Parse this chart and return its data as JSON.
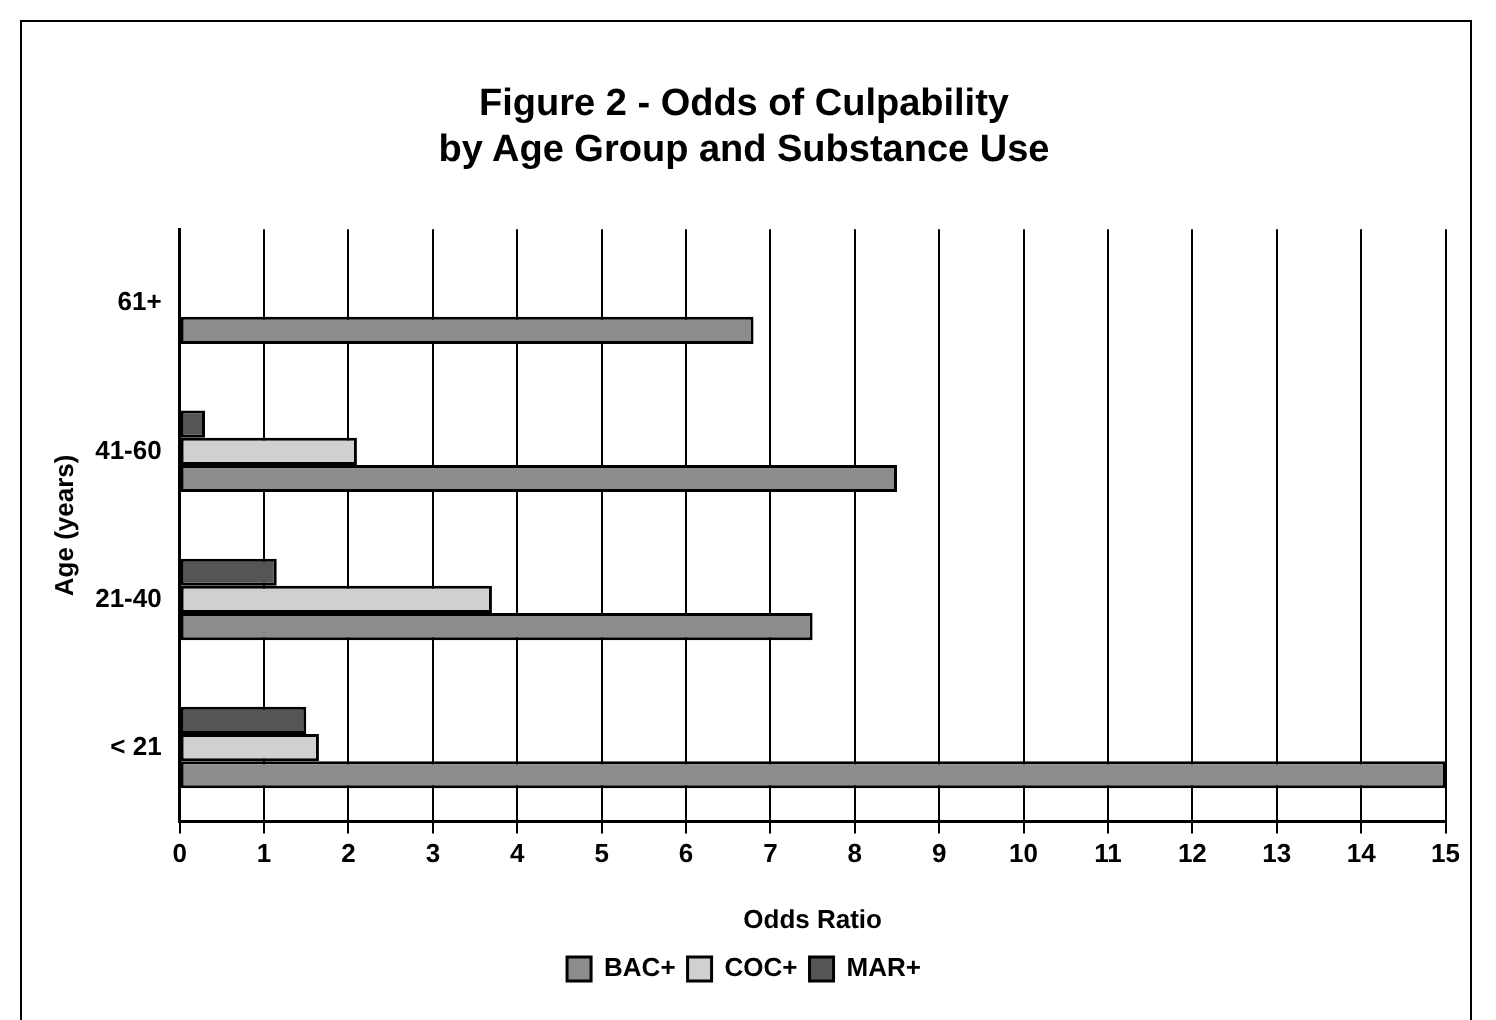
{
  "chart_data": {
    "type": "bar",
    "orientation": "horizontal",
    "title": "Figure 2 - Odds of Culpability\nby Age Group and Substance Use",
    "xlabel": "Odds Ratio",
    "ylabel": "Age (years)",
    "categories": [
      "61+",
      "41-60",
      "21-40",
      "< 21"
    ],
    "series": [
      {
        "name": "BAC+",
        "color": "#8c8c8c",
        "values": [
          6.8,
          8.5,
          7.5,
          15
        ]
      },
      {
        "name": "COC+",
        "color": "#d0d0d0",
        "values": [
          null,
          2.1,
          3.7,
          1.65
        ]
      },
      {
        "name": "MAR+",
        "color": "#555555",
        "values": [
          null,
          0.3,
          1.15,
          1.5
        ]
      }
    ],
    "xlim": [
      0,
      15
    ],
    "xticks": [
      0,
      1,
      2,
      3,
      4,
      5,
      6,
      7,
      8,
      9,
      10,
      11,
      12,
      13,
      14,
      15
    ],
    "grid": "x",
    "legend": "bottom"
  }
}
